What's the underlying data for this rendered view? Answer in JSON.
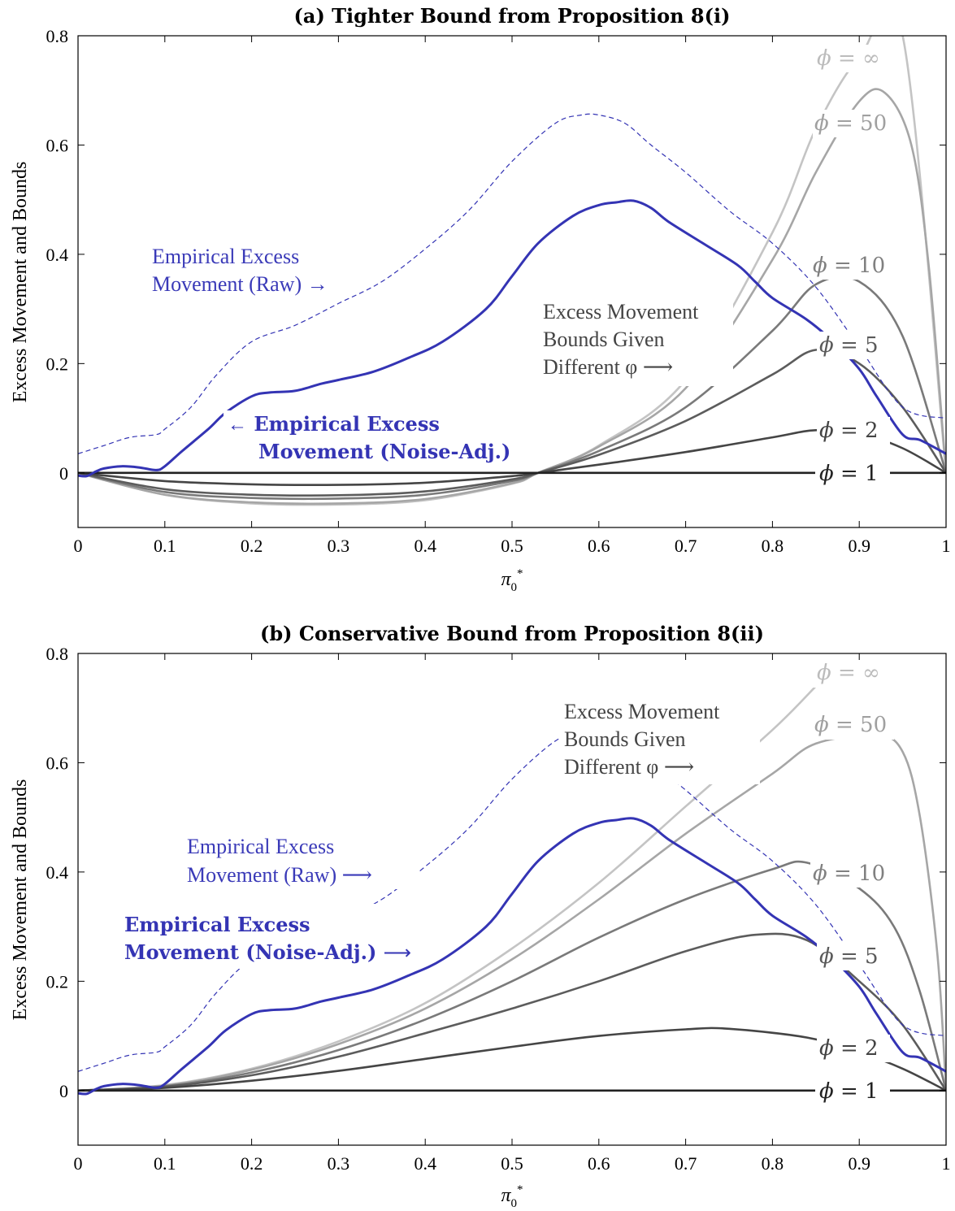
{
  "chart_data": [
    {
      "type": "line",
      "title": "(a) Tighter Bound from Proposition 8(i)",
      "xlabel": "π0*",
      "ylabel": "Excess Movement and Bounds",
      "xlim": [
        0,
        1
      ],
      "ylim": [
        -0.1,
        0.8
      ],
      "xticks": [
        "0",
        "0.1",
        "0.2",
        "0.3",
        "0.4",
        "0.5",
        "0.6",
        "0.7",
        "0.8",
        "0.9",
        "1"
      ],
      "yticks": [
        "0",
        "0.2",
        "0.4",
        "0.6",
        "0.8"
      ],
      "series": [
        {
          "name": "φ = ∞",
          "color": "#c4c4c4",
          "x": [
            0,
            0.1,
            0.2,
            0.3,
            0.4,
            0.5,
            0.53,
            0.6,
            0.7,
            0.8,
            0.85,
            0.9,
            0.95,
            1.0
          ],
          "y": [
            0,
            -0.04,
            -0.056,
            -0.058,
            -0.05,
            -0.02,
            0,
            0.05,
            0.17,
            0.44,
            0.63,
            0.76,
            0.8,
            0
          ]
        },
        {
          "name": "φ = 50",
          "color": "#a6a6a6",
          "x": [
            0,
            0.1,
            0.2,
            0.3,
            0.4,
            0.5,
            0.53,
            0.6,
            0.7,
            0.8,
            0.85,
            0.9,
            0.93,
            0.96,
            0.98,
            1.0
          ],
          "y": [
            0,
            -0.04,
            -0.054,
            -0.056,
            -0.048,
            -0.019,
            0,
            0.048,
            0.155,
            0.39,
            0.55,
            0.68,
            0.695,
            0.6,
            0.38,
            0
          ]
        },
        {
          "name": "φ = 10",
          "color": "#7a7a7a",
          "x": [
            0,
            0.1,
            0.2,
            0.3,
            0.4,
            0.5,
            0.53,
            0.6,
            0.7,
            0.8,
            0.85,
            0.9,
            0.95,
            1.0
          ],
          "y": [
            0,
            -0.035,
            -0.046,
            -0.047,
            -0.04,
            -0.015,
            0,
            0.04,
            0.12,
            0.26,
            0.345,
            0.35,
            0.25,
            0
          ]
        },
        {
          "name": "φ = 5",
          "color": "#5c5c5c",
          "x": [
            0,
            0.1,
            0.2,
            0.3,
            0.4,
            0.5,
            0.53,
            0.6,
            0.7,
            0.8,
            0.85,
            0.9,
            0.95,
            1.0
          ],
          "y": [
            0,
            -0.03,
            -0.04,
            -0.041,
            -0.034,
            -0.012,
            0,
            0.033,
            0.095,
            0.18,
            0.225,
            0.2,
            0.12,
            0
          ]
        },
        {
          "name": "φ = 2",
          "color": "#454545",
          "x": [
            0,
            0.1,
            0.2,
            0.3,
            0.4,
            0.5,
            0.53,
            0.6,
            0.7,
            0.8,
            0.85,
            0.9,
            0.95,
            1.0
          ],
          "y": [
            0,
            -0.015,
            -0.021,
            -0.022,
            -0.018,
            -0.006,
            0,
            0.015,
            0.038,
            0.065,
            0.078,
            0.072,
            0.045,
            0
          ]
        },
        {
          "name": "φ = 1",
          "color": "#222222",
          "x": [
            0,
            1
          ],
          "y": [
            0,
            0
          ]
        },
        {
          "name": "Empirical Excess Movement (Noise-Adj.)",
          "color": "#3434b4",
          "x": [
            0,
            0.01,
            0.02,
            0.03,
            0.05,
            0.07,
            0.09,
            0.1,
            0.12,
            0.15,
            0.17,
            0.2,
            0.22,
            0.25,
            0.28,
            0.3,
            0.34,
            0.38,
            0.42,
            0.47,
            0.5,
            0.53,
            0.57,
            0.6,
            0.62,
            0.64,
            0.66,
            0.68,
            0.72,
            0.76,
            0.78,
            0.8,
            0.84,
            0.87,
            0.9,
            0.92,
            0.95,
            0.97,
            1.0
          ],
          "y": [
            -0.005,
            -0.006,
            0.002,
            0.008,
            0.012,
            0.01,
            0.005,
            0.012,
            0.04,
            0.08,
            0.11,
            0.14,
            0.147,
            0.15,
            0.163,
            0.17,
            0.185,
            0.21,
            0.24,
            0.3,
            0.36,
            0.42,
            0.47,
            0.49,
            0.495,
            0.498,
            0.485,
            0.46,
            0.42,
            0.38,
            0.35,
            0.32,
            0.28,
            0.24,
            0.19,
            0.14,
            0.07,
            0.06,
            0.035
          ]
        },
        {
          "name": "Empirical Excess Movement (Raw)",
          "color": "#3434b4",
          "dashed": true,
          "x": [
            0,
            0.03,
            0.06,
            0.09,
            0.1,
            0.13,
            0.16,
            0.2,
            0.25,
            0.3,
            0.35,
            0.4,
            0.45,
            0.5,
            0.55,
            0.58,
            0.6,
            0.63,
            0.66,
            0.7,
            0.75,
            0.8,
            0.85,
            0.9,
            0.95,
            1.0
          ],
          "y": [
            0.035,
            0.05,
            0.065,
            0.07,
            0.08,
            0.12,
            0.18,
            0.24,
            0.27,
            0.31,
            0.35,
            0.41,
            0.48,
            0.57,
            0.64,
            0.655,
            0.655,
            0.64,
            0.6,
            0.55,
            0.48,
            0.42,
            0.34,
            0.23,
            0.12,
            0.1
          ]
        }
      ],
      "annotations": [
        "Empirical Excess",
        "Movement (Raw) →",
        "← Empirical Excess",
        "Movement (Noise-Adj.)",
        "Excess Movement",
        "Bounds Given",
        "Different φ ⟶"
      ]
    },
    {
      "type": "line",
      "title": "(b) Conservative Bound from Proposition 8(ii)",
      "xlabel": "π0*",
      "ylabel": "Excess Movement and Bounds",
      "xlim": [
        0,
        1
      ],
      "ylim": [
        -0.1,
        0.8
      ],
      "xticks": [
        "0",
        "0.1",
        "0.2",
        "0.3",
        "0.4",
        "0.5",
        "0.6",
        "0.7",
        "0.8",
        "0.9",
        "1"
      ],
      "yticks": [
        "0",
        "0.2",
        "0.4",
        "0.6",
        "0.8"
      ],
      "series": [
        {
          "name": "φ = ∞",
          "color": "#c4c4c4",
          "x": [
            0,
            0.1,
            0.2,
            0.3,
            0.4,
            0.5,
            0.6,
            0.7,
            0.8,
            0.85
          ],
          "y": [
            0,
            0.01,
            0.04,
            0.09,
            0.16,
            0.26,
            0.38,
            0.52,
            0.66,
            0.74
          ]
        },
        {
          "name": "φ = 50",
          "color": "#a6a6a6",
          "x": [
            0,
            0.1,
            0.2,
            0.3,
            0.4,
            0.5,
            0.6,
            0.7,
            0.8,
            0.85,
            0.92,
            0.95,
            0.97,
            0.99,
            1.0
          ],
          "y": [
            0,
            0.009,
            0.038,
            0.085,
            0.15,
            0.24,
            0.35,
            0.47,
            0.58,
            0.635,
            0.65,
            0.62,
            0.5,
            0.25,
            0
          ]
        },
        {
          "name": "φ = 10",
          "color": "#7a7a7a",
          "x": [
            0,
            0.1,
            0.2,
            0.3,
            0.4,
            0.5,
            0.6,
            0.7,
            0.8,
            0.84,
            0.9,
            0.94,
            0.97,
            1.0
          ],
          "y": [
            0,
            0.008,
            0.033,
            0.074,
            0.13,
            0.2,
            0.28,
            0.35,
            0.405,
            0.417,
            0.37,
            0.3,
            0.18,
            0
          ]
        },
        {
          "name": "φ = 5",
          "color": "#5c5c5c",
          "x": [
            0,
            0.1,
            0.2,
            0.3,
            0.4,
            0.5,
            0.6,
            0.7,
            0.78,
            0.84,
            0.9,
            0.95,
            1.0
          ],
          "y": [
            0,
            0.007,
            0.028,
            0.062,
            0.105,
            0.15,
            0.2,
            0.255,
            0.285,
            0.275,
            0.2,
            0.12,
            0
          ]
        },
        {
          "name": "φ = 2",
          "color": "#454545",
          "x": [
            0,
            0.1,
            0.2,
            0.3,
            0.4,
            0.5,
            0.6,
            0.7,
            0.75,
            0.84,
            0.9,
            0.95,
            1.0
          ],
          "y": [
            0,
            0.005,
            0.018,
            0.036,
            0.058,
            0.08,
            0.1,
            0.112,
            0.113,
            0.097,
            0.07,
            0.04,
            0
          ]
        },
        {
          "name": "φ = 1",
          "color": "#222222",
          "x": [
            0,
            1
          ],
          "y": [
            0,
            0
          ]
        },
        {
          "name": "Empirical Excess Movement (Noise-Adj.)",
          "color": "#3434b4",
          "x": [
            0,
            0.01,
            0.02,
            0.03,
            0.05,
            0.07,
            0.09,
            0.1,
            0.12,
            0.15,
            0.17,
            0.2,
            0.22,
            0.25,
            0.28,
            0.3,
            0.34,
            0.38,
            0.42,
            0.47,
            0.5,
            0.53,
            0.57,
            0.6,
            0.62,
            0.64,
            0.66,
            0.68,
            0.72,
            0.76,
            0.78,
            0.8,
            0.84,
            0.87,
            0.9,
            0.92,
            0.95,
            0.97,
            1.0
          ],
          "y": [
            -0.005,
            -0.006,
            0.002,
            0.008,
            0.012,
            0.01,
            0.005,
            0.012,
            0.04,
            0.08,
            0.11,
            0.14,
            0.147,
            0.15,
            0.163,
            0.17,
            0.185,
            0.21,
            0.24,
            0.3,
            0.36,
            0.42,
            0.47,
            0.49,
            0.495,
            0.498,
            0.485,
            0.46,
            0.42,
            0.38,
            0.35,
            0.32,
            0.28,
            0.24,
            0.19,
            0.14,
            0.07,
            0.06,
            0.035
          ]
        },
        {
          "name": "Empirical Excess Movement (Raw)",
          "color": "#3434b4",
          "dashed": true,
          "x": [
            0,
            0.03,
            0.06,
            0.09,
            0.1,
            0.13,
            0.16,
            0.2,
            0.25,
            0.3,
            0.35,
            0.4,
            0.45,
            0.5,
            0.55,
            0.58,
            0.6,
            0.63,
            0.66,
            0.7,
            0.75,
            0.8,
            0.85,
            0.9,
            0.95,
            1.0
          ],
          "y": [
            0.035,
            0.05,
            0.065,
            0.07,
            0.08,
            0.12,
            0.18,
            0.24,
            0.27,
            0.31,
            0.35,
            0.41,
            0.48,
            0.57,
            0.64,
            0.655,
            0.655,
            0.64,
            0.6,
            0.55,
            0.48,
            0.42,
            0.34,
            0.23,
            0.12,
            0.1
          ]
        }
      ],
      "annotations": [
        "Empirical Excess",
        "Movement (Raw) ⟶",
        "Empirical Excess",
        "Movement (Noise-Adj.) ⟶",
        "Excess Movement",
        "Bounds Given",
        "Different φ ⟶"
      ]
    }
  ]
}
